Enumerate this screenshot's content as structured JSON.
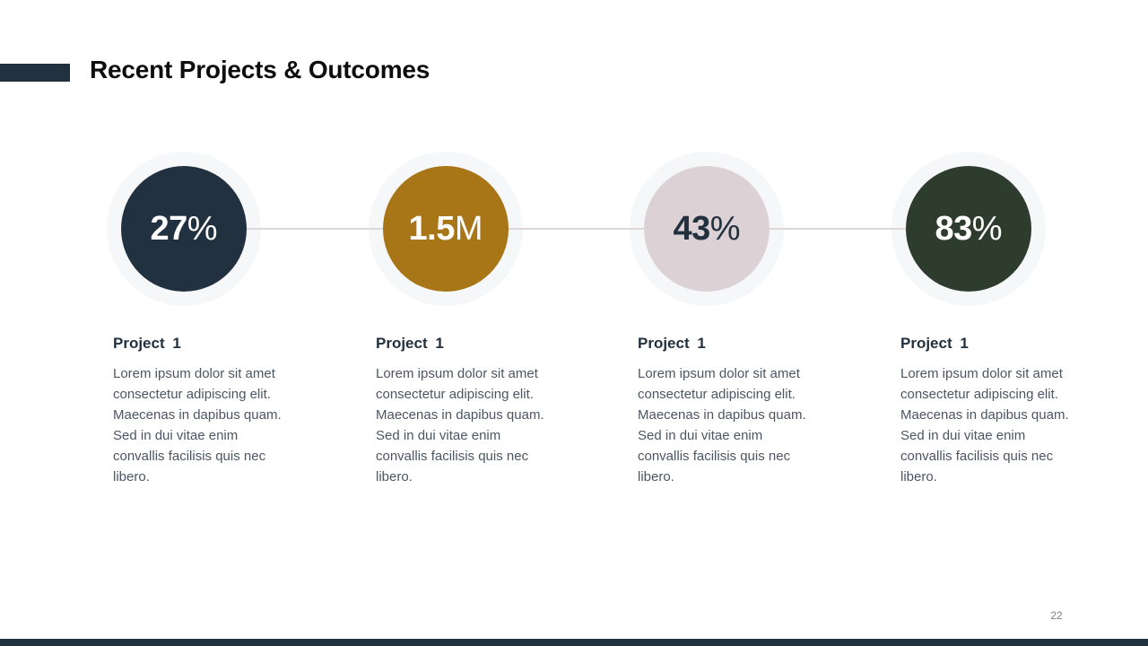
{
  "slide": {
    "title": "Recent Projects & Outcomes",
    "page_number": "22",
    "accent_color": "#22313f",
    "bottom_bar_color": "#22313f",
    "connector_color": "#ddd7d8",
    "ring_color": "#f5f7f9"
  },
  "projects": [
    {
      "stat_value": "27",
      "stat_suffix": "%",
      "circle_color": "#22313f",
      "stat_text_color": "#ffffff",
      "heading": "Project 1",
      "body_lines": [
        "Lorem ipsum dolor sit amet",
        "consectetur adipiscing elit.",
        "Maecenas in dapibus quam.",
        "Sed in dui vitae enim",
        "convallis facilisis quis nec",
        "libero."
      ]
    },
    {
      "stat_value": "1.5",
      "stat_suffix": "M",
      "circle_color": "#a87517",
      "stat_text_color": "#ffffff",
      "heading": "Project 1",
      "body_lines": [
        "Lorem ipsum dolor sit amet",
        "consectetur adipiscing elit.",
        "Maecenas in dapibus quam.",
        "Sed in dui vitae enim",
        "convallis facilisis quis nec",
        "libero."
      ]
    },
    {
      "stat_value": "43",
      "stat_suffix": "%",
      "circle_color": "#dcd2d6",
      "stat_text_color": "#22313f",
      "heading": "Project 1",
      "body_lines": [
        "Lorem ipsum dolor sit amet",
        "consectetur adipiscing elit.",
        "Maecenas in dapibus quam.",
        "Sed in dui vitae enim",
        "convallis facilisis quis nec",
        "libero."
      ]
    },
    {
      "stat_value": "83",
      "stat_suffix": "%",
      "circle_color": "#2e3c2e",
      "stat_text_color": "#ffffff",
      "heading": "Project 1",
      "body_lines": [
        "Lorem ipsum dolor sit amet",
        "consectetur adipiscing elit.",
        "Maecenas in dapibus quam.",
        "Sed in dui vitae enim",
        "convallis facilisis quis nec",
        "libero."
      ]
    }
  ]
}
